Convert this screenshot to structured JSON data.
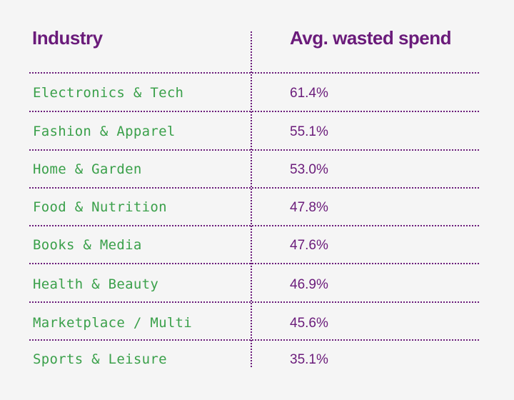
{
  "header": {
    "industry_label": "Industry",
    "spend_label": "Avg. wasted spend"
  },
  "rows": [
    {
      "industry": "Electronics & Tech",
      "value": "61.4%"
    },
    {
      "industry": "Fashion & Apparel",
      "value": "55.1%"
    },
    {
      "industry": "Home & Garden",
      "value": "53.0%"
    },
    {
      "industry": "Food & Nutrition",
      "value": "47.8%"
    },
    {
      "industry": "Books & Media",
      "value": "47.6%"
    },
    {
      "industry": "Health & Beauty",
      "value": "46.9%"
    },
    {
      "industry": "Marketplace / Multi",
      "value": "45.6%"
    },
    {
      "industry": "Sports & Leisure",
      "value": "35.1%"
    }
  ],
  "colors": {
    "header": "#6a1b7a",
    "industry_text": "#3aa04a",
    "value_text": "#6a1b7a",
    "background": "#f5f5f5"
  }
}
